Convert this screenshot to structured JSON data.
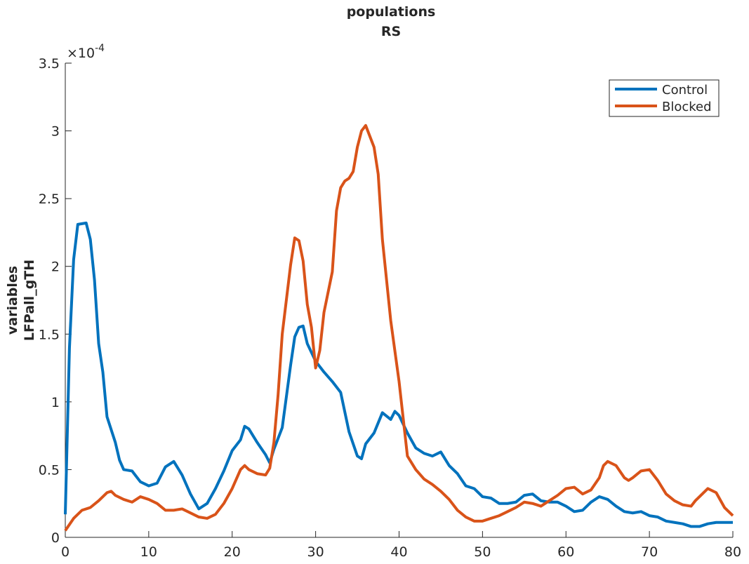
{
  "chart_data": {
    "type": "line",
    "title": "populations",
    "subtitle": "RS",
    "ylabel": [
      "variables",
      "LFPall_gTH"
    ],
    "y_multiplier_base": "×10",
    "y_multiplier_exponent": "-4",
    "xlim": [
      0,
      80
    ],
    "xticks": [
      0,
      10,
      20,
      30,
      40,
      50,
      60,
      70,
      80
    ],
    "ylim": [
      0,
      3.5
    ],
    "yticks": [
      0,
      0.5,
      1,
      1.5,
      2,
      2.5,
      3,
      3.5
    ],
    "grid": false,
    "legend": "upper-right",
    "series": [
      {
        "name": "Control",
        "color": "#0072bd",
        "x": [
          0,
          0.5,
          1,
          1.5,
          2.5,
          3,
          3.5,
          4,
          4.5,
          5,
          6,
          6.5,
          7,
          8,
          9,
          10,
          11,
          12,
          13,
          14,
          15,
          16,
          17,
          18,
          19,
          20,
          21,
          21.5,
          22,
          23,
          24,
          24.5,
          25,
          26,
          27,
          27.5,
          28,
          28.5,
          29,
          30,
          31,
          32,
          33,
          34,
          35,
          35.5,
          36,
          37,
          38,
          39,
          39.5,
          40,
          41,
          42,
          43,
          44,
          45,
          46,
          47,
          48,
          49,
          50,
          51,
          52,
          53,
          54,
          55,
          56,
          57,
          58,
          59,
          60,
          61,
          62,
          63,
          64,
          65,
          66,
          67,
          68,
          69,
          70,
          71,
          72,
          73,
          74,
          75,
          76,
          77,
          78,
          79,
          80
        ],
        "values": [
          0.17,
          1.4,
          2.05,
          2.31,
          2.32,
          2.2,
          1.9,
          1.43,
          1.22,
          0.89,
          0.7,
          0.57,
          0.5,
          0.49,
          0.41,
          0.38,
          0.4,
          0.52,
          0.56,
          0.46,
          0.32,
          0.21,
          0.25,
          0.36,
          0.49,
          0.64,
          0.72,
          0.82,
          0.8,
          0.7,
          0.61,
          0.55,
          0.65,
          0.81,
          1.27,
          1.48,
          1.55,
          1.56,
          1.43,
          1.3,
          1.22,
          1.15,
          1.07,
          0.78,
          0.6,
          0.58,
          0.69,
          0.77,
          0.92,
          0.87,
          0.93,
          0.9,
          0.77,
          0.66,
          0.62,
          0.6,
          0.63,
          0.53,
          0.47,
          0.38,
          0.36,
          0.3,
          0.29,
          0.25,
          0.25,
          0.26,
          0.31,
          0.32,
          0.27,
          0.26,
          0.26,
          0.23,
          0.19,
          0.2,
          0.26,
          0.3,
          0.28,
          0.23,
          0.19,
          0.18,
          0.19,
          0.16,
          0.15,
          0.12,
          0.11,
          0.1,
          0.08,
          0.08,
          0.1,
          0.11,
          0.11,
          0.11
        ]
      },
      {
        "name": "Blocked",
        "color": "#d95319",
        "x": [
          0,
          1,
          2,
          3,
          4,
          5,
          5.5,
          6,
          7,
          8,
          9,
          10,
          11,
          12,
          13,
          14,
          15,
          16,
          17,
          18,
          19,
          20,
          21,
          21.5,
          22,
          23,
          24,
          24.5,
          25,
          25.5,
          26,
          27,
          27.5,
          28,
          28.5,
          29,
          29.5,
          30,
          30.5,
          31,
          32,
          32.5,
          33,
          33.5,
          34,
          34.5,
          35,
          35.5,
          36,
          37,
          37.5,
          38,
          39,
          40,
          41,
          42,
          43,
          44,
          45,
          46,
          47,
          48,
          49,
          50,
          51,
          52,
          53,
          54,
          55,
          56,
          57,
          58,
          59,
          60,
          61,
          62,
          63,
          64,
          64.5,
          65,
          66,
          67,
          67.5,
          68,
          69,
          70,
          71,
          72,
          73,
          74,
          75,
          75.5,
          76,
          77,
          78,
          79,
          80
        ],
        "values": [
          0.05,
          0.14,
          0.2,
          0.22,
          0.27,
          0.33,
          0.34,
          0.31,
          0.28,
          0.26,
          0.3,
          0.28,
          0.25,
          0.2,
          0.2,
          0.21,
          0.18,
          0.15,
          0.14,
          0.17,
          0.25,
          0.36,
          0.5,
          0.53,
          0.5,
          0.47,
          0.46,
          0.51,
          0.7,
          1.05,
          1.5,
          2.01,
          2.21,
          2.19,
          2.04,
          1.72,
          1.55,
          1.25,
          1.38,
          1.66,
          1.96,
          2.41,
          2.58,
          2.63,
          2.65,
          2.7,
          2.88,
          3.0,
          3.04,
          2.88,
          2.68,
          2.2,
          1.6,
          1.15,
          0.6,
          0.5,
          0.43,
          0.39,
          0.34,
          0.28,
          0.2,
          0.15,
          0.12,
          0.12,
          0.14,
          0.16,
          0.19,
          0.22,
          0.26,
          0.25,
          0.23,
          0.27,
          0.31,
          0.36,
          0.37,
          0.32,
          0.35,
          0.44,
          0.53,
          0.56,
          0.53,
          0.44,
          0.42,
          0.44,
          0.49,
          0.5,
          0.42,
          0.32,
          0.27,
          0.24,
          0.23,
          0.27,
          0.3,
          0.36,
          0.33,
          0.22,
          0.16
        ]
      }
    ]
  }
}
